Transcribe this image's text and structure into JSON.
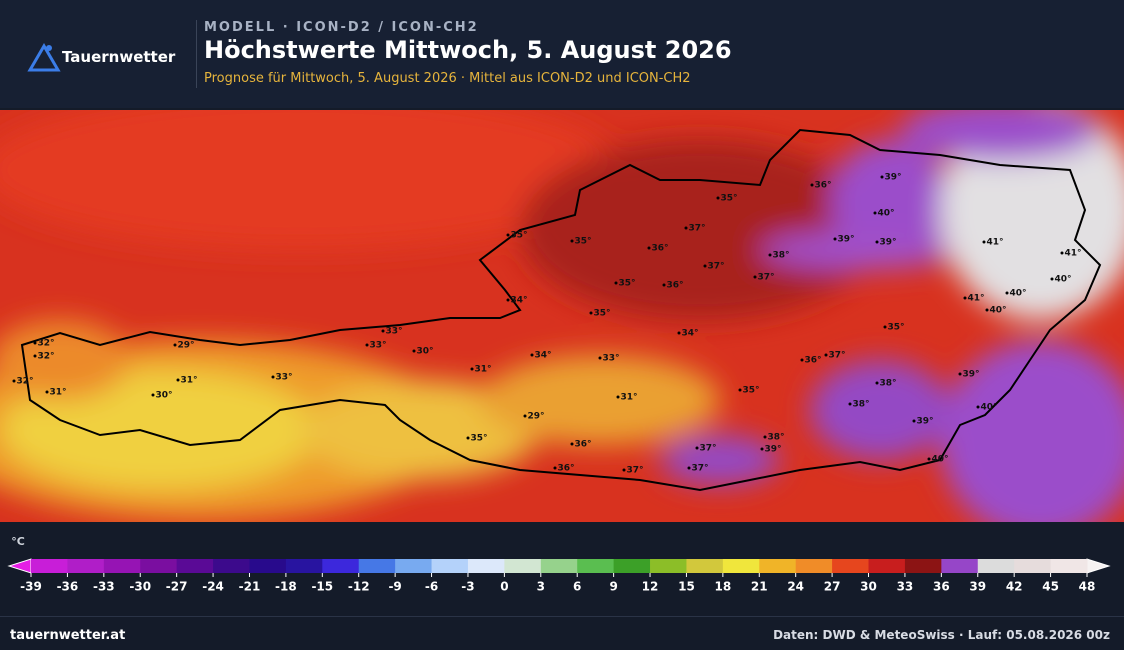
{
  "header": {
    "brand": "Tauernwetter",
    "kicker": "MODELL · ICON-D2 / ICON-CH2",
    "title": "Höchstwerte Mittwoch, 5. August 2026",
    "subtitle": "Prognose für Mittwoch, 5. August 2026 · Mittel aus ICON-D2 und ICON-CH2"
  },
  "map": {
    "labels": [
      "32°",
      "32°",
      "32°",
      "31°",
      "29°",
      "31°",
      "30°",
      "33°",
      "33°",
      "33°",
      "30°",
      "35°",
      "35°",
      "34°",
      "35°",
      "35°",
      "36°",
      "37°",
      "35°",
      "36°",
      "37°",
      "37°",
      "38°",
      "36°",
      "39°",
      "40°",
      "39°",
      "39°",
      "41°",
      "41°",
      "40°",
      "41°",
      "40°",
      "40°",
      "35°",
      "34°",
      "34°",
      "33°",
      "31°",
      "36°",
      "37°",
      "35°",
      "31°",
      "38°",
      "38°",
      "39°",
      "40°",
      "39°",
      "29°",
      "35°",
      "36°",
      "38°",
      "39°",
      "37°",
      "37°",
      "37°",
      "36°",
      "40°"
    ]
  },
  "colorbar": {
    "unit": "°C",
    "ticks": [
      -39,
      -36,
      -33,
      -30,
      -27,
      -24,
      -21,
      -18,
      -15,
      -12,
      -9,
      -6,
      -3,
      0,
      3,
      6,
      9,
      12,
      15,
      18,
      21,
      24,
      27,
      30,
      33,
      36,
      39,
      42,
      45,
      48
    ],
    "low_color": "#e61ee6",
    "high_color": "#f6f2f2",
    "colors": [
      "#c81ed8",
      "#b01ec8",
      "#9614b4",
      "#7a0ea0",
      "#5a0a96",
      "#3c0a8c",
      "#280a8c",
      "#2814a0",
      "#3c28dc",
      "#4678e6",
      "#78aaf0",
      "#b4d2fa",
      "#dce8fa",
      "#d2e6d2",
      "#96d28c",
      "#5abe50",
      "#3ca028",
      "#8cbe28",
      "#d2c83c",
      "#f0e63c",
      "#f0b428",
      "#f08c28",
      "#e6461e",
      "#c81e1e",
      "#8c1414",
      "#9646c8",
      "#dcdcdc",
      "#e6dcdc",
      "#f0e6e6"
    ]
  },
  "footer": {
    "site": "tauernwetter.at",
    "credits": "Daten: DWD & MeteoSwiss · Lauf: 05.08.2026 00z"
  }
}
